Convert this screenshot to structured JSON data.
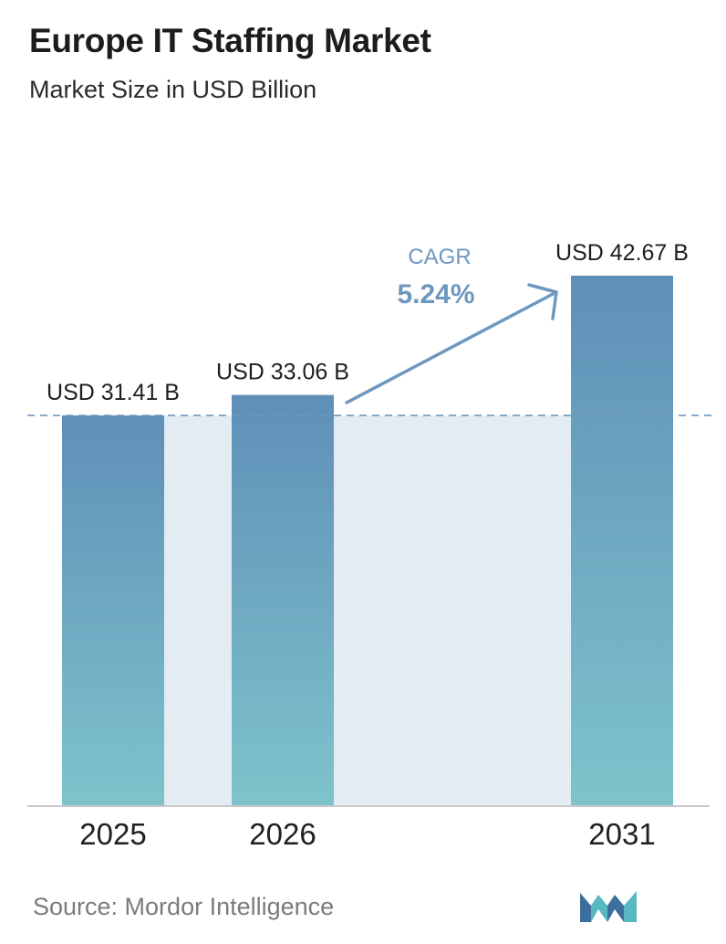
{
  "chart_data": {
    "type": "bar",
    "title": "Europe IT Staffing Market",
    "subtitle": "Market Size in USD Billion",
    "categories": [
      "2025",
      "2026",
      "2031"
    ],
    "values": [
      31.41,
      33.06,
      42.67
    ],
    "value_labels": [
      "USD 31.41 B",
      "USD 33.06 B",
      "USD 42.67 B"
    ],
    "ylim": [
      0,
      45
    ],
    "annotation": {
      "label": "CAGR",
      "value": "5.24%"
    },
    "grid": false,
    "colors": {
      "bar_top": "#5f8fb8",
      "bar_bottom": "#7ec3cb",
      "band": "#e3ebf3",
      "arrow": "#6e98bf",
      "dashed_line": "#6e98bf",
      "axis": "#c9c9c9"
    }
  },
  "source": "Source:  Mordor Intelligence",
  "logo": {
    "icon": "mordor-intelligence-logo-icon",
    "colors": [
      "#3d6f9e",
      "#57b8c2"
    ]
  }
}
